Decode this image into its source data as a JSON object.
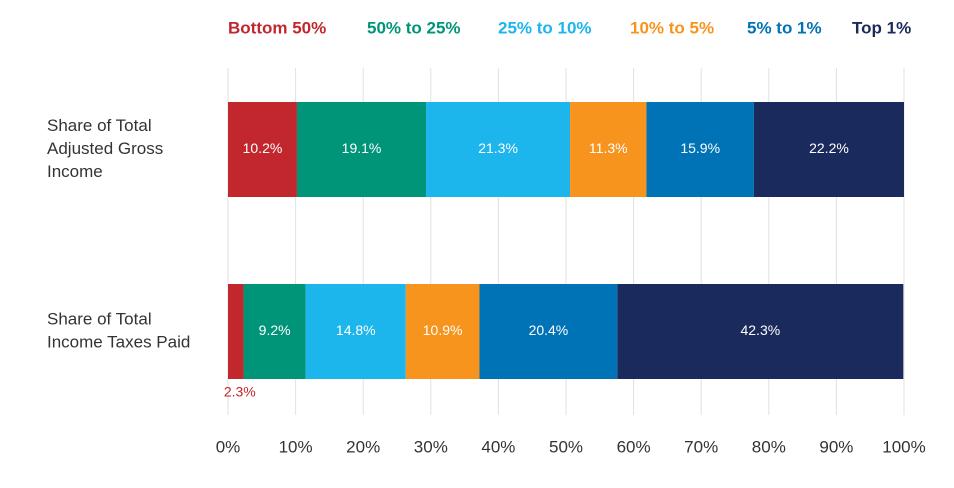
{
  "chart_data": {
    "type": "bar",
    "orientation": "horizontal",
    "stacked": true,
    "percent_scale": true,
    "title": "",
    "xlabel": "",
    "ylabel": "",
    "xlim": [
      0,
      100
    ],
    "x_ticks": [
      "0%",
      "10%",
      "20%",
      "30%",
      "40%",
      "50%",
      "60%",
      "70%",
      "80%",
      "90%",
      "100%"
    ],
    "grid": "vertical",
    "legend_position": "top",
    "categories": [
      {
        "id": "agi",
        "lines": [
          "Share of Total",
          "Adjusted Gross",
          "Income"
        ]
      },
      {
        "id": "taxes",
        "lines": [
          "Share of Total",
          "Income Taxes Paid"
        ]
      }
    ],
    "series": [
      {
        "name": "Bottom 50%",
        "color": "#c1272d",
        "values": [
          10.2,
          2.3
        ],
        "labels": [
          "10.2%",
          "2.3%"
        ],
        "label_placement": [
          "inside",
          "below"
        ]
      },
      {
        "name": "50% to 25%",
        "color": "#009479",
        "values": [
          19.1,
          9.2
        ],
        "labels": [
          "19.1%",
          "9.2%"
        ],
        "label_placement": [
          "inside",
          "inside"
        ]
      },
      {
        "name": "25% to 10%",
        "color": "#1cb5ec",
        "values": [
          21.3,
          14.8
        ],
        "labels": [
          "21.3%",
          "14.8%"
        ],
        "label_placement": [
          "inside",
          "inside"
        ]
      },
      {
        "name": "10% to 5%",
        "color": "#f7941e",
        "values": [
          11.3,
          10.9
        ],
        "labels": [
          "11.3%",
          "10.9%"
        ],
        "label_placement": [
          "inside",
          "inside"
        ]
      },
      {
        "name": "5% to 1%",
        "color": "#0073b7",
        "values": [
          15.9,
          20.4
        ],
        "labels": [
          "15.9%",
          "20.4%"
        ],
        "label_placement": [
          "inside",
          "inside"
        ]
      },
      {
        "name": "Top 1%",
        "color": "#1b2a5c",
        "values": [
          22.2,
          42.3
        ],
        "labels": [
          "22.2%",
          "42.3%"
        ],
        "label_placement": [
          "inside",
          "inside"
        ]
      }
    ]
  }
}
